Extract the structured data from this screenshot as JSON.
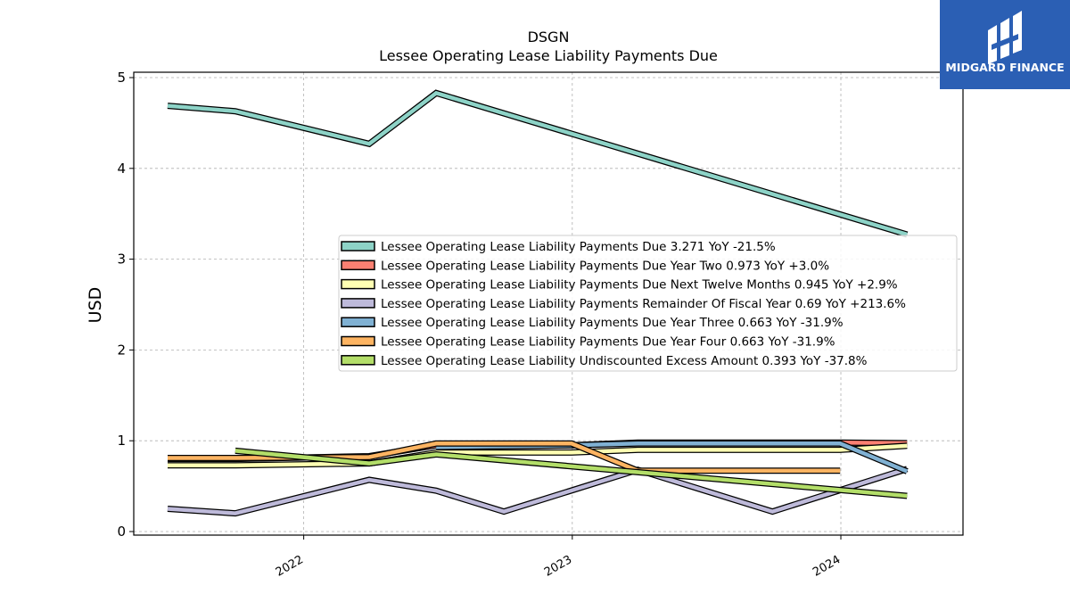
{
  "chart_data": {
    "type": "line",
    "title": "DSGN",
    "subtitle": "Lessee Operating Lease Liability Payments Due",
    "xlabel": "",
    "ylabel": "USD",
    "ylim": [
      0,
      5
    ],
    "yticks": [
      "0",
      "1",
      "2",
      "3",
      "4",
      "5"
    ],
    "xlim": [
      "2021-05-15",
      "2024-06-15"
    ],
    "xticks": [
      {
        "date": "2022-01-01",
        "label": "2022"
      },
      {
        "date": "2023-01-01",
        "label": "2023"
      },
      {
        "date": "2024-01-01",
        "label": "2024"
      }
    ],
    "grid": true,
    "legend_position": "center-right",
    "series": [
      {
        "name": "Lessee Operating Lease Liability Payments Due",
        "legend": "Lessee Operating Lease Liability Payments Due  3.271 YoY -21.5%",
        "color": "#8dd3c7",
        "x": [
          "2021-06-30",
          "2021-09-30",
          "2022-03-31",
          "2022-06-30",
          "2024-03-31"
        ],
        "y": [
          4.69,
          4.63,
          4.27,
          4.83,
          3.271
        ]
      },
      {
        "name": "Lessee Operating Lease Liability Payments Due Year Two",
        "legend": "Lessee Operating Lease Liability Payments Due Year Two  0.973 YoY +3.0%",
        "color": "#fb8072",
        "x": [
          "2021-06-30",
          "2021-09-30",
          "2022-03-31",
          "2022-06-30",
          "2022-09-30",
          "2022-12-31",
          "2023-03-31",
          "2023-06-30",
          "2023-09-30",
          "2023-12-31",
          "2024-03-31"
        ],
        "y": [
          0.8,
          0.8,
          0.83,
          0.95,
          0.95,
          0.95,
          0.98,
          0.98,
          0.98,
          0.98,
          0.973
        ]
      },
      {
        "name": "Lessee Operating Lease Liability Payments Due Next Twelve Months",
        "legend": "Lessee Operating Lease Liability Payments Due Next Twelve Months  0.945 YoY +2.9%",
        "color": "#ffffb3",
        "x": [
          "2021-06-30",
          "2021-09-30",
          "2022-03-31",
          "2022-06-30",
          "2022-09-30",
          "2022-12-31",
          "2023-03-31",
          "2023-06-30",
          "2023-09-30",
          "2023-12-31",
          "2024-03-31"
        ],
        "y": [
          0.73,
          0.73,
          0.75,
          0.87,
          0.87,
          0.87,
          0.9,
          0.9,
          0.9,
          0.9,
          0.945
        ]
      },
      {
        "name": "Lessee Operating Lease Liability Payments Remainder Of Fiscal Year",
        "legend": "Lessee Operating Lease Liability Payments Remainder Of Fiscal Year  0.69 YoY +213.6%",
        "color": "#bebada",
        "x": [
          "2021-06-30",
          "2021-09-30",
          "2022-03-31",
          "2022-06-30",
          "2022-09-30",
          "2023-03-31",
          "2023-09-30",
          "2024-03-31"
        ],
        "y": [
          0.25,
          0.2,
          0.57,
          0.45,
          0.22,
          0.68,
          0.22,
          0.69
        ]
      },
      {
        "name": "Lessee Operating Lease Liability Payments Due Year Three",
        "legend": "Lessee Operating Lease Liability Payments Due Year Three  0.663 YoY -31.9%",
        "color": "#80b1d3",
        "x": [
          "2022-06-30",
          "2022-12-31",
          "2023-03-31",
          "2023-12-31",
          "2024-03-31"
        ],
        "y": [
          0.93,
          0.95,
          0.97,
          0.97,
          0.663
        ]
      },
      {
        "name": "Lessee Operating Lease Liability Payments Due Year Four",
        "legend": "Lessee Operating Lease Liability Payments Due Year Four  0.663 YoY -31.9%",
        "color": "#fdb462",
        "x": [
          "2021-06-30",
          "2021-09-30",
          "2022-03-31",
          "2022-06-30",
          "2022-12-31",
          "2023-03-31",
          "2023-12-31"
        ],
        "y": [
          0.81,
          0.81,
          0.82,
          0.97,
          0.97,
          0.67,
          0.67
        ]
      },
      {
        "name": "Lessee Operating Lease Liability Undiscounted Excess Amount",
        "legend": "Lessee Operating Lease Liability Undiscounted Excess Amount  0.393 YoY -37.8%",
        "color": "#b3de69",
        "x": [
          "2021-09-30",
          "2022-03-31",
          "2022-06-30",
          "2024-03-31"
        ],
        "y": [
          0.89,
          0.75,
          0.85,
          0.393
        ]
      }
    ]
  },
  "logo": {
    "text": "MIDGARD FINANCE",
    "background": "#2b5fb4"
  }
}
